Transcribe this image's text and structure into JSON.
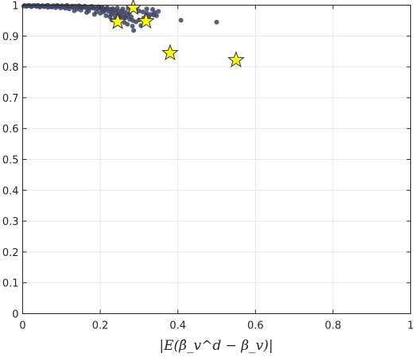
{
  "chart_data": {
    "type": "scatter",
    "title": "",
    "xlabel": "|E(β̂_v^d − β_v)|",
    "ylabel": "",
    "xlim": [
      0,
      1
    ],
    "ylim": [
      0,
      1
    ],
    "grid": true,
    "x_ticks": [
      "0",
      "0.2",
      "0.4",
      "0.6",
      "0.8",
      "1"
    ],
    "y_ticks": [
      "0",
      "0.1",
      "0.2",
      "0.3",
      "0.4",
      "0.5",
      "0.6",
      "0.7",
      "0.8",
      "0.9",
      "1"
    ],
    "colors": {
      "points": "#3e4463",
      "stars": "#ffff00",
      "star_edge": "#333333"
    },
    "series": [
      {
        "marker": "circle",
        "points": [
          [
            0.005,
            0.999
          ],
          [
            0.012,
            0.998
          ],
          [
            0.018,
            0.999
          ],
          [
            0.025,
            0.997
          ],
          [
            0.032,
            0.998
          ],
          [
            0.04,
            0.999
          ],
          [
            0.046,
            0.996
          ],
          [
            0.053,
            0.998
          ],
          [
            0.06,
            0.997
          ],
          [
            0.066,
            0.999
          ],
          [
            0.072,
            0.995
          ],
          [
            0.08,
            0.997
          ],
          [
            0.086,
            0.998
          ],
          [
            0.092,
            0.996
          ],
          [
            0.1,
            0.997
          ],
          [
            0.106,
            0.994
          ],
          [
            0.112,
            0.998
          ],
          [
            0.118,
            0.995
          ],
          [
            0.125,
            0.996
          ],
          [
            0.13,
            0.993
          ],
          [
            0.136,
            0.997
          ],
          [
            0.142,
            0.994
          ],
          [
            0.148,
            0.996
          ],
          [
            0.153,
            0.992
          ],
          [
            0.158,
            0.995
          ],
          [
            0.163,
            0.991
          ],
          [
            0.168,
            0.994
          ],
          [
            0.172,
            0.989
          ],
          [
            0.177,
            0.993
          ],
          [
            0.182,
            0.99
          ],
          [
            0.187,
            0.994
          ],
          [
            0.192,
            0.988
          ],
          [
            0.197,
            0.992
          ],
          [
            0.202,
            0.986
          ],
          [
            0.207,
            0.99
          ],
          [
            0.212,
            0.983
          ],
          [
            0.216,
            0.988
          ],
          [
            0.221,
            0.98
          ],
          [
            0.226,
            0.986
          ],
          [
            0.231,
            0.978
          ],
          [
            0.236,
            0.984
          ],
          [
            0.241,
            0.975
          ],
          [
            0.246,
            0.982
          ],
          [
            0.25,
            0.972
          ],
          [
            0.255,
            0.98
          ],
          [
            0.26,
            0.969
          ],
          [
            0.265,
            0.977
          ],
          [
            0.27,
            0.966
          ],
          [
            0.275,
            0.974
          ],
          [
            0.28,
            0.962
          ],
          [
            0.29,
            0.985
          ],
          [
            0.3,
            0.981
          ],
          [
            0.31,
            0.978
          ],
          [
            0.32,
            0.974
          ],
          [
            0.33,
            0.97
          ],
          [
            0.345,
            0.966
          ],
          [
            0.215,
            0.966
          ],
          [
            0.225,
            0.962
          ],
          [
            0.23,
            0.952
          ],
          [
            0.24,
            0.956
          ],
          [
            0.25,
            0.948
          ],
          [
            0.262,
            0.944
          ],
          [
            0.27,
            0.938
          ],
          [
            0.283,
            0.932
          ],
          [
            0.286,
            0.918
          ],
          [
            0.305,
            0.934
          ],
          [
            0.26,
            0.958
          ],
          [
            0.248,
            0.96
          ],
          [
            0.2,
            0.974
          ],
          [
            0.19,
            0.978
          ],
          [
            0.185,
            0.97
          ],
          [
            0.17,
            0.981
          ],
          [
            0.165,
            0.976
          ],
          [
            0.15,
            0.984
          ],
          [
            0.14,
            0.987
          ],
          [
            0.133,
            0.982
          ],
          [
            0.12,
            0.988
          ],
          [
            0.11,
            0.99
          ],
          [
            0.098,
            0.991
          ],
          [
            0.085,
            0.992
          ],
          [
            0.075,
            0.994
          ],
          [
            0.065,
            0.993
          ],
          [
            0.055,
            0.995
          ],
          [
            0.044,
            0.994
          ],
          [
            0.035,
            0.996
          ],
          [
            0.022,
            0.995
          ],
          [
            0.01,
            0.996
          ],
          [
            0.003,
            0.997
          ],
          [
            0.32,
            0.988
          ],
          [
            0.335,
            0.986
          ],
          [
            0.35,
            0.98
          ],
          [
            0.34,
            0.976
          ],
          [
            0.408,
            0.951
          ],
          [
            0.5,
            0.945
          ],
          [
            0.295,
            0.994
          ],
          [
            0.272,
            0.99
          ],
          [
            0.258,
            0.988
          ],
          [
            0.244,
            0.991
          ],
          [
            0.232,
            0.989
          ],
          [
            0.218,
            0.992
          ],
          [
            0.205,
            0.993
          ],
          [
            0.195,
            0.995
          ],
          [
            0.178,
            0.996
          ],
          [
            0.16,
            0.997
          ],
          [
            0.145,
            0.998
          ],
          [
            0.128,
            0.997
          ],
          [
            0.115,
            0.999
          ],
          [
            0.102,
            0.998
          ],
          [
            0.09,
            0.999
          ],
          [
            0.078,
            0.998
          ],
          [
            0.063,
            0.999
          ],
          [
            0.05,
            0.998
          ],
          [
            0.038,
            0.999
          ],
          [
            0.028,
            0.999
          ],
          [
            0.015,
            0.999
          ],
          [
            0.228,
            0.97
          ],
          [
            0.238,
            0.966
          ],
          [
            0.252,
            0.964
          ],
          [
            0.266,
            0.96
          ],
          [
            0.276,
            0.954
          ],
          [
            0.284,
            0.95
          ],
          [
            0.292,
            0.946
          ],
          [
            0.3,
            0.952
          ],
          [
            0.312,
            0.958
          ],
          [
            0.325,
            0.962
          ],
          [
            0.338,
            0.968
          ],
          [
            0.318,
            0.966
          ],
          [
            0.208,
            0.978
          ]
        ]
      },
      {
        "marker": "star",
        "points": [
          [
            0.285,
            0.992
          ],
          [
            0.245,
            0.946
          ],
          [
            0.318,
            0.948
          ],
          [
            0.38,
            0.845
          ],
          [
            0.55,
            0.822
          ]
        ]
      }
    ]
  }
}
